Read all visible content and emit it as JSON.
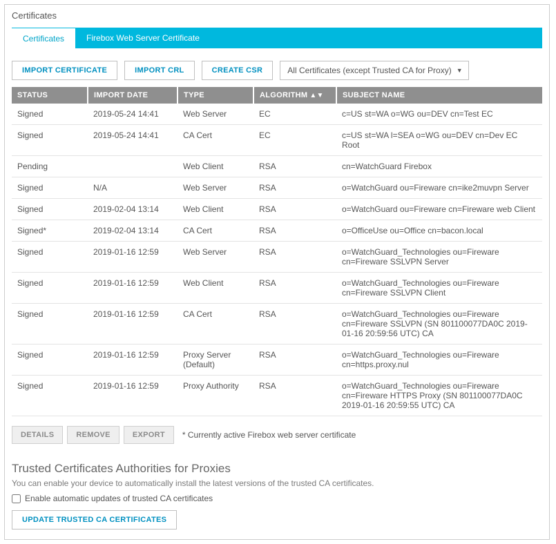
{
  "title": "Certificates",
  "tabs": {
    "certificates": "Certificates",
    "firebox": "Firebox Web Server Certificate"
  },
  "toolbar": {
    "import_cert": "IMPORT CERTIFICATE",
    "import_crl": "IMPORT CRL",
    "create_csr": "CREATE CSR",
    "filter_selected": "All Certificates (except Trusted CA for Proxy)"
  },
  "table": {
    "headers": {
      "status": "STATUS",
      "import_date": "IMPORT DATE",
      "type": "TYPE",
      "algorithm": "ALGORITHM",
      "subject": "SUBJECT NAME"
    },
    "rows": [
      {
        "status": "Signed",
        "date": "2019-05-24 14:41",
        "type": "Web Server",
        "alg": "EC",
        "subject": "c=US st=WA o=WG ou=DEV cn=Test EC"
      },
      {
        "status": "Signed",
        "date": "2019-05-24 14:41",
        "type": "CA Cert",
        "alg": "EC",
        "subject": "c=US st=WA l=SEA o=WG ou=DEV cn=Dev EC Root"
      },
      {
        "status": "Pending",
        "date": "",
        "type": "Web Client",
        "alg": "RSA",
        "subject": "cn=WatchGuard Firebox"
      },
      {
        "status": "Signed",
        "date": "N/A",
        "type": "Web Server",
        "alg": "RSA",
        "subject": "o=WatchGuard ou=Fireware cn=ike2muvpn Server"
      },
      {
        "status": "Signed",
        "date": "2019-02-04 13:14",
        "type": "Web Client",
        "alg": "RSA",
        "subject": "o=WatchGuard ou=Fireware cn=Fireware web Client"
      },
      {
        "status": "Signed*",
        "date": "2019-02-04 13:14",
        "type": "CA Cert",
        "alg": "RSA",
        "subject": "o=OfficeUse ou=Office cn=bacon.local"
      },
      {
        "status": "Signed",
        "date": "2019-01-16 12:59",
        "type": "Web Server",
        "alg": "RSA",
        "subject": "o=WatchGuard_Technologies ou=Fireware cn=Fireware SSLVPN Server"
      },
      {
        "status": "Signed",
        "date": "2019-01-16 12:59",
        "type": "Web Client",
        "alg": "RSA",
        "subject": "o=WatchGuard_Technologies ou=Fireware cn=Fireware SSLVPN Client"
      },
      {
        "status": "Signed",
        "date": "2019-01-16 12:59",
        "type": "CA Cert",
        "alg": "RSA",
        "subject": "o=WatchGuard_Technologies ou=Fireware cn=Fireware SSLVPN (SN 801100077DA0C 2019-01-16 20:59:56 UTC) CA"
      },
      {
        "status": "Signed",
        "date": "2019-01-16 12:59",
        "type": "Proxy Server (Default)",
        "alg": "RSA",
        "subject": "o=WatchGuard_Technologies ou=Fireware cn=https.proxy.nul"
      },
      {
        "status": "Signed",
        "date": "2019-01-16 12:59",
        "type": "Proxy Authority",
        "alg": "RSA",
        "subject": "o=WatchGuard_Technologies ou=Fireware cn=Fireware HTTPS Proxy (SN 801100077DA0C 2019-01-16 20:59:55 UTC) CA"
      }
    ]
  },
  "actions": {
    "details": "DETAILS",
    "remove": "REMOVE",
    "export": "EXPORT",
    "note": "* Currently active Firebox web server certificate"
  },
  "trusted": {
    "heading": "Trusted Certificates Authorities for Proxies",
    "desc": "You can enable your device to automatically install the latest versions of the trusted CA certificates.",
    "checkbox_label": "Enable automatic updates of trusted CA certificates",
    "update_btn": "UPDATE TRUSTED CA CERTIFICATES"
  }
}
